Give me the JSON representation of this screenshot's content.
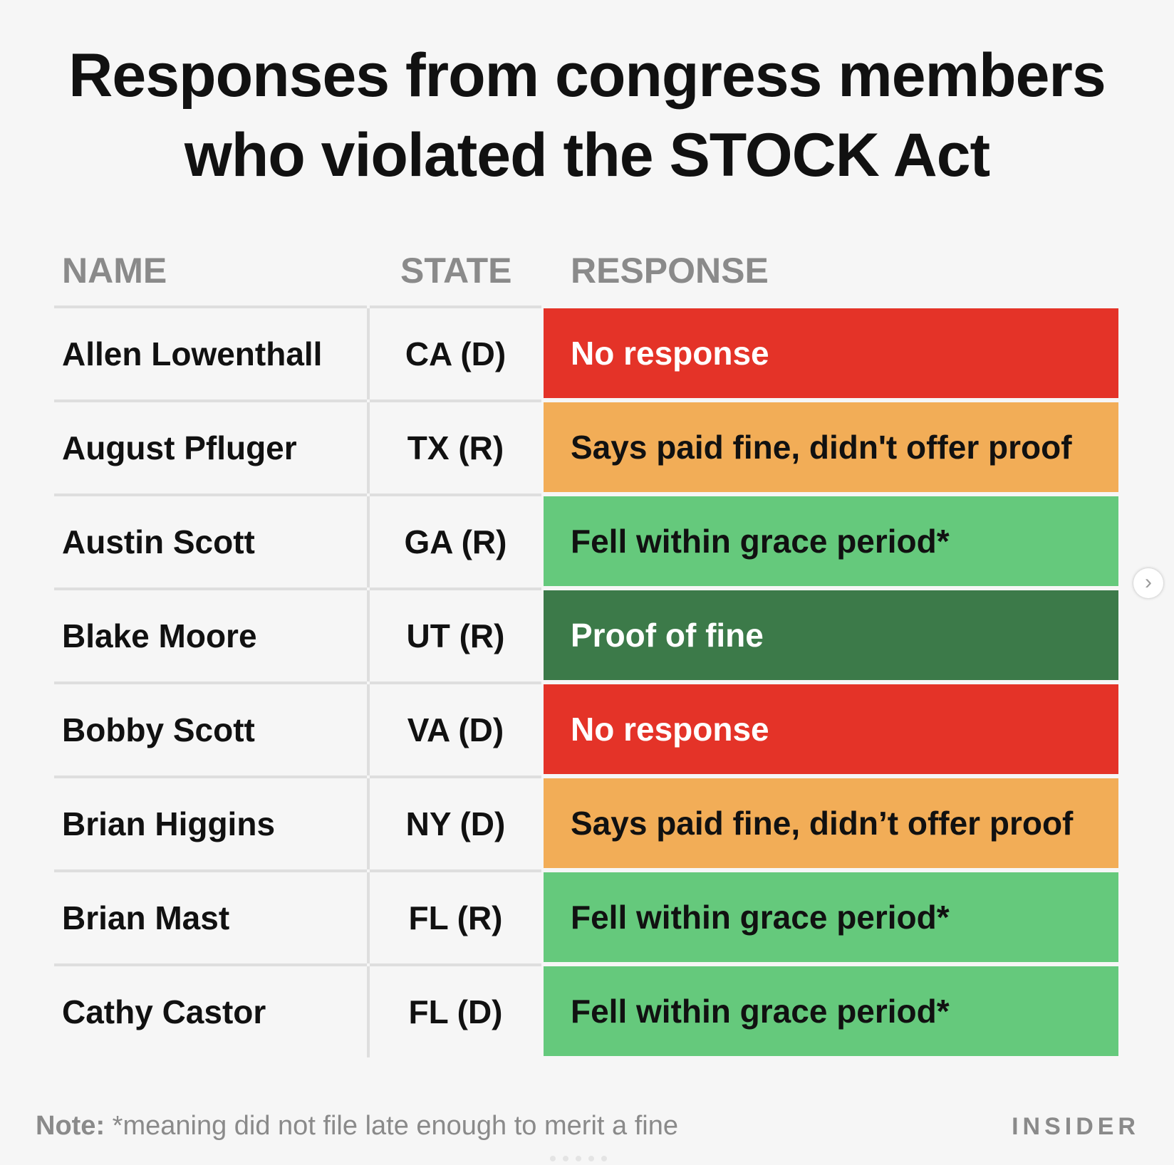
{
  "title_lines": [
    "Responses from congress members",
    "who violated the STOCK Act"
  ],
  "chart_data": {
    "type": "table",
    "title": "Responses from congress members who violated the STOCK Act",
    "columns": [
      "NAME",
      "STATE",
      "RESPONSE"
    ],
    "rows": [
      {
        "name": "Allen Lowenthall",
        "state": "CA (D)",
        "response": "No response",
        "status": "none"
      },
      {
        "name": "August Pfluger",
        "state": "TX (R)",
        "response": "Says paid fine, didn't offer proof",
        "status": "claimed"
      },
      {
        "name": "Austin Scott",
        "state": "GA (R)",
        "response": "Fell within grace period*",
        "status": "grace"
      },
      {
        "name": "Blake Moore",
        "state": "UT (R)",
        "response": "Proof of fine",
        "status": "proof"
      },
      {
        "name": "Bobby Scott",
        "state": "VA (D)",
        "response": "No response",
        "status": "none"
      },
      {
        "name": "Brian Higgins",
        "state": "NY (D)",
        "response": "Says paid fine, didn’t offer proof",
        "status": "claimed"
      },
      {
        "name": "Brian Mast",
        "state": "FL (R)",
        "response": "Fell within grace period*",
        "status": "grace"
      },
      {
        "name": "Cathy Castor",
        "state": "FL (D)",
        "response": "Fell within grace period*",
        "status": "grace"
      }
    ],
    "status_colors": {
      "none": "#e43328",
      "claimed": "#f2ad57",
      "grace": "#65c97c",
      "proof": "#3c7a49"
    },
    "status_text_colors": {
      "none": "#ffffff",
      "claimed": "#111111",
      "grace": "#111111",
      "proof": "#ffffff"
    }
  },
  "note": {
    "label": "Note:",
    "text": " *meaning did not file late enough to merit a fine"
  },
  "logo": "INSIDER",
  "nav": {
    "next_icon": "›"
  }
}
